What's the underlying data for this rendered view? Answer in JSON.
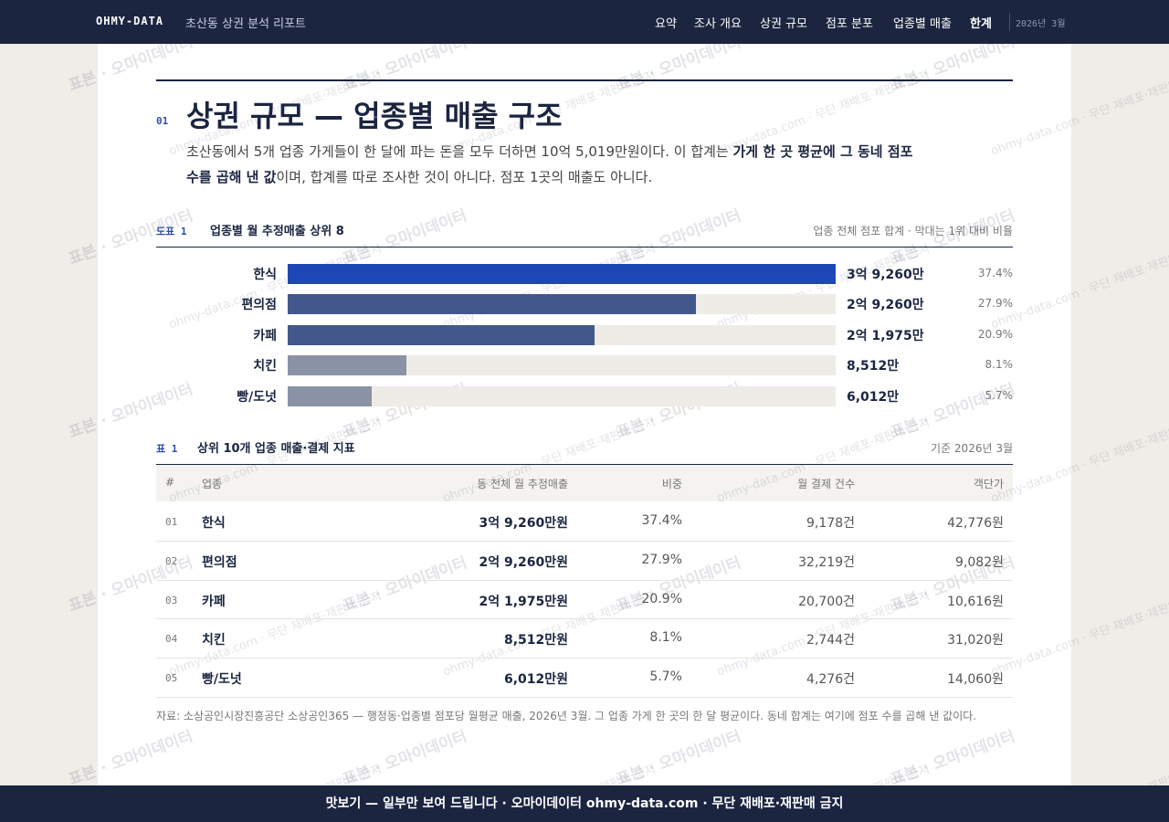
{
  "nav": {
    "brand": "OHMY-DATA",
    "subtitle": "초산동 상권 분석 리포트",
    "links": [
      "요약",
      "조사 개요",
      "상권 규모",
      "점포 분포",
      "업종별 매출",
      "한계"
    ],
    "date": "2026년 3월"
  },
  "section": {
    "number": "01",
    "title": "상권 규모 — 업종별 매출 구조",
    "lead": [
      "초산동에서 5개 업종 가게들이 한 달에 파는 돈을 모두 더하면 10억 5,019만원이다. 이 합계는 ",
      "가게 한 곳 평균에 그 동네 점포 수를 곱해 낸 값",
      "이며, 합계를 따로 조사한 것이 아니다. 점포 1곳의 매출도 아니다."
    ]
  },
  "chart_data": {
    "type": "bar",
    "tag": "도표 1",
    "title": "업종별 월 추정매출 상위 8",
    "note": "업종 전체 점포 합계 · 막대는 1위 대비 비율",
    "categories": [
      "한식",
      "편의점",
      "카페",
      "치킨",
      "빵/도넛"
    ],
    "values": [
      39260,
      29260,
      21975,
      8512,
      6012
    ],
    "value_labels": [
      "3억 9,260만",
      "2억 9,260만",
      "2억 1,975만",
      "8,512만",
      "6,012만"
    ],
    "share_labels": [
      "37.4%",
      "27.9%",
      "20.9%",
      "8.1%",
      "5.7%"
    ],
    "colors": [
      "#1c47b5",
      "#42588c",
      "#42588c",
      "#8a92a5",
      "#8a92a5"
    ],
    "track_color": "#eeece6"
  },
  "table": {
    "tag": "표 1",
    "title": "상위 10개 업종 매출·결제 지표",
    "note": "기준 2026년 3월",
    "columns": [
      "#",
      "업종",
      "동 전체 월 추정매출",
      "비중",
      "월 결제 건수",
      "객단가"
    ],
    "rows": [
      [
        "01",
        "한식",
        "3억 9,260만원",
        "37.4%",
        "9,178건",
        "42,776원"
      ],
      [
        "02",
        "편의점",
        "2억 9,260만원",
        "27.9%",
        "32,219건",
        "9,082원"
      ],
      [
        "03",
        "카페",
        "2억 1,975만원",
        "20.9%",
        "20,700건",
        "10,616원"
      ],
      [
        "04",
        "치킨",
        "8,512만원",
        "8.1%",
        "2,744건",
        "31,020원"
      ],
      [
        "05",
        "빵/도넛",
        "6,012만원",
        "5.7%",
        "4,276건",
        "14,060원"
      ]
    ]
  },
  "source": "자료: 소상공인시장진흥공단 소상공인365 — 행정동·업종별 점포당 월평균 매출, 2026년 3월. 그 업종 가게 한 곳의 한 달 평균이다. 동네 합계는 여기에 점포 수를 곱해 낸 값이다.",
  "footer": "맛보기 — 일부만 보여 드립니다 · 오마이데이터 ohmy-data.com · 무단 재배포·재판매 금지",
  "watermarks": [
    "표본 · 오마이데이터",
    "ohmy-data.com · 무단 재배포·재판매 금지"
  ]
}
